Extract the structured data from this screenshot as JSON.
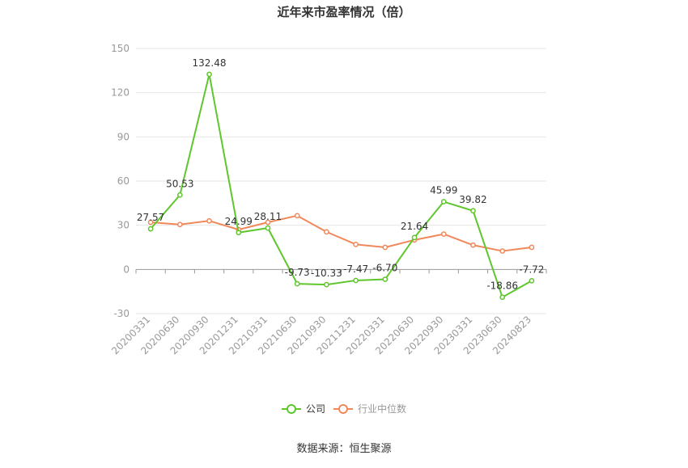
{
  "chart_data": {
    "type": "line",
    "title": "近年来市盈率情况（倍）",
    "categories": [
      "20200331",
      "20200630",
      "20200930",
      "20201231",
      "20210331",
      "20210630",
      "20210930",
      "20211231",
      "20220331",
      "20220630",
      "20220930",
      "20230331",
      "20230630",
      "20240823"
    ],
    "series": [
      {
        "name": "公司",
        "color": "#5fc62c",
        "values": [
          27.57,
          50.53,
          132.48,
          24.99,
          28.11,
          -9.73,
          -10.33,
          -7.47,
          -6.7,
          21.64,
          45.99,
          39.82,
          -18.86,
          -7.72
        ],
        "labels": [
          "27.57",
          "50.53",
          "132.48",
          "24.99",
          "28.11",
          "-9.73",
          "-10.33",
          "-7.47",
          "-6.70",
          "21.64",
          "45.99",
          "39.82",
          "-18.86",
          "-7.72"
        ]
      },
      {
        "name": "行业中位数",
        "color": "#f0885a",
        "values": [
          32,
          30.5,
          33,
          27,
          32,
          36.5,
          25.5,
          17,
          15,
          20,
          24,
          16.5,
          12.5,
          15
        ]
      }
    ],
    "y_ticks": [
      "150",
      "120",
      "90",
      "60",
      "30",
      "0",
      "-30"
    ],
    "ylim": [
      -30,
      150
    ],
    "grid": true,
    "legend_position": "bottom",
    "source": "数据来源：恒生聚源"
  }
}
